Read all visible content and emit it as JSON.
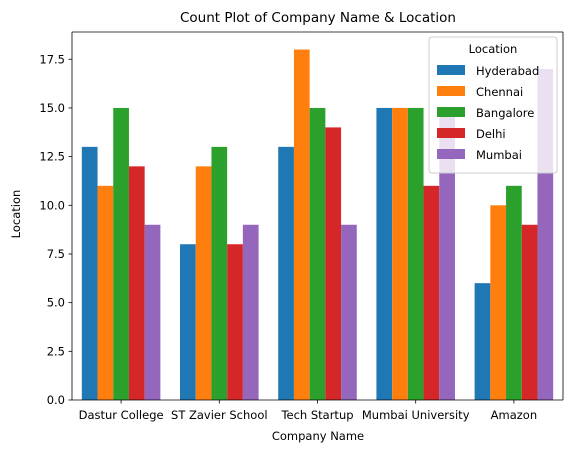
{
  "chart_data": {
    "type": "bar",
    "title": "Count Plot of Company Name & Location",
    "xlabel": "Company Name",
    "ylabel": "Location",
    "categories": [
      "Dastur College",
      "ST Zavier School",
      "Tech Startup",
      "Mumbai University",
      "Amazon"
    ],
    "series": [
      {
        "name": "Hyderabad",
        "color": "#1f77b4",
        "values": [
          13,
          8,
          13,
          15,
          6
        ]
      },
      {
        "name": "Chennai",
        "color": "#ff7f0e",
        "values": [
          11,
          12,
          18,
          15,
          10
        ]
      },
      {
        "name": "Bangalore",
        "color": "#2ca02c",
        "values": [
          15,
          13,
          15,
          15,
          11
        ]
      },
      {
        "name": "Delhi",
        "color": "#d62728",
        "values": [
          12,
          8,
          14,
          11,
          9
        ]
      },
      {
        "name": "Mumbai",
        "color": "#9467bd",
        "values": [
          9,
          9,
          9,
          15,
          17
        ]
      }
    ],
    "ylim": [
      0,
      18.9
    ],
    "yticks": [
      "0.0",
      "2.5",
      "5.0",
      "7.5",
      "10.0",
      "12.5",
      "15.0",
      "17.5"
    ],
    "grid": false,
    "legend": {
      "title": "Location",
      "position": "top-right"
    }
  }
}
